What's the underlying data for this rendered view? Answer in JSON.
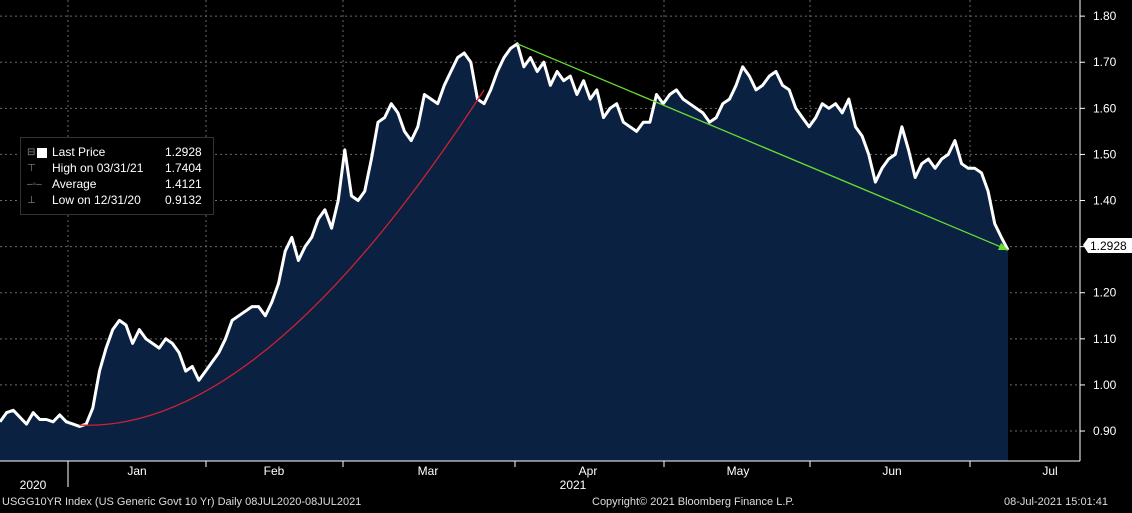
{
  "chart_data": {
    "type": "line",
    "ticker": "USGG10YR Index (US Generic Govt 10 Yr)",
    "frequency": "Daily",
    "range": "08JUL2020-08JUL2021",
    "year_labels": [
      "2020",
      "2021"
    ],
    "month_labels": [
      "Jan",
      "Feb",
      "Mar",
      "Apr",
      "May",
      "Jun",
      "Jul"
    ],
    "y_ticks": [
      "1.80",
      "1.70",
      "1.60",
      "1.50",
      "1.40",
      "1.30",
      "1.20",
      "1.10",
      "1.00",
      "0.90"
    ],
    "ylim": [
      0.835,
      1.835
    ],
    "last_price_label": "1.2928",
    "legend": [
      {
        "label": "Last Price",
        "value": "1.2928"
      },
      {
        "label": "High on 03/31/21",
        "value": "1.7404"
      },
      {
        "label": "Average",
        "value": "1.4121"
      },
      {
        "label": "Low on 12/31/20",
        "value": "0.9132"
      }
    ],
    "series": [
      {
        "values": [
          0.92,
          0.94,
          0.945,
          0.93,
          0.915,
          0.94,
          0.925,
          0.925,
          0.92,
          0.935,
          0.92,
          0.915,
          0.91,
          0.915,
          0.95,
          1.03,
          1.08,
          1.12,
          1.14,
          1.13,
          1.09,
          1.12,
          1.1,
          1.09,
          1.08,
          1.1,
          1.09,
          1.07,
          1.03,
          1.04,
          1.01,
          1.03,
          1.05,
          1.07,
          1.1,
          1.14,
          1.15,
          1.16,
          1.17,
          1.17,
          1.15,
          1.18,
          1.22,
          1.29,
          1.32,
          1.27,
          1.3,
          1.32,
          1.36,
          1.38,
          1.34,
          1.4,
          1.51,
          1.41,
          1.4,
          1.42,
          1.49,
          1.57,
          1.58,
          1.61,
          1.59,
          1.55,
          1.53,
          1.56,
          1.63,
          1.62,
          1.61,
          1.65,
          1.68,
          1.71,
          1.72,
          1.7,
          1.62,
          1.61,
          1.64,
          1.68,
          1.71,
          1.73,
          1.74,
          1.69,
          1.71,
          1.68,
          1.7,
          1.65,
          1.68,
          1.66,
          1.67,
          1.63,
          1.66,
          1.62,
          1.64,
          1.58,
          1.6,
          1.61,
          1.57,
          1.56,
          1.55,
          1.57,
          1.57,
          1.63,
          1.61,
          1.63,
          1.64,
          1.62,
          1.61,
          1.6,
          1.59,
          1.57,
          1.58,
          1.61,
          1.62,
          1.65,
          1.69,
          1.67,
          1.64,
          1.65,
          1.67,
          1.68,
          1.65,
          1.64,
          1.6,
          1.58,
          1.56,
          1.58,
          1.61,
          1.6,
          1.61,
          1.59,
          1.62,
          1.56,
          1.54,
          1.5,
          1.44,
          1.47,
          1.49,
          1.5,
          1.56,
          1.51,
          1.45,
          1.48,
          1.49,
          1.47,
          1.49,
          1.5,
          1.53,
          1.48,
          1.47,
          1.47,
          1.46,
          1.42,
          1.35,
          1.32,
          1.2928
        ]
      }
    ],
    "colors": {
      "line": "#ffffff",
      "fill": "#0b2142",
      "grid": "#6a6a6a",
      "red": "#cc2233",
      "green": "#66dd33",
      "axis": "#ffffff"
    }
  },
  "footer": {
    "left": "USGG10YR Index (US Generic Govt 10 Yr)  Daily 08JUL2020-08JUL2021",
    "center": "Copyright© 2021 Bloomberg Finance L.P.",
    "right": "08-Jul-2021 15:01:41"
  }
}
